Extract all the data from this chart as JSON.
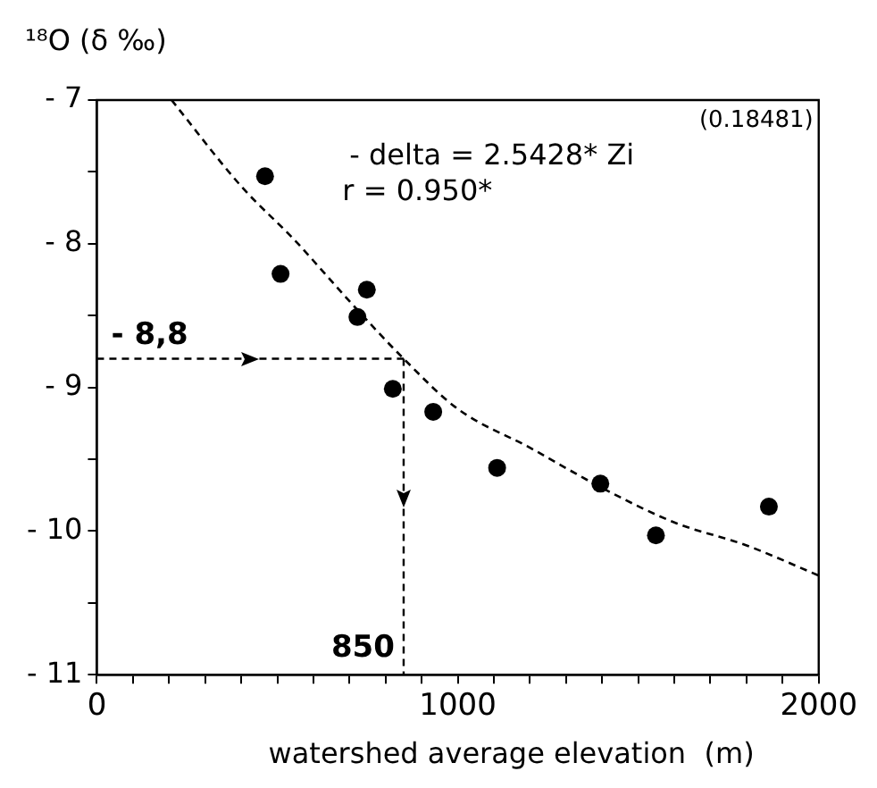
{
  "chart_data": {
    "type": "scatter",
    "ylabel": "¹⁸O (δ ‰)",
    "xlabel": "watershed average elevation  (m)",
    "annotations": [
      "- delta = 2.5428* Zi",
      "r = 0.950*",
      "(0.18481)"
    ],
    "xlim": [
      0,
      2000
    ],
    "ylim": [
      -11,
      -7
    ],
    "xticks": [
      0,
      {
        "value": 100,
        "label": null
      },
      {
        "value": 200,
        "label": null
      },
      {
        "value": 300,
        "label": null
      },
      {
        "value": 400,
        "label": null
      },
      {
        "value": 500,
        "label": null
      },
      {
        "value": 600,
        "label": null
      },
      {
        "value": 700,
        "label": null
      },
      {
        "value": 800,
        "label": null
      },
      {
        "value": 900,
        "label": null
      },
      1000,
      {
        "value": 1100,
        "label": null
      },
      {
        "value": 1200,
        "label": null
      },
      {
        "value": 1300,
        "label": null
      },
      {
        "value": 1400,
        "label": null
      },
      {
        "value": 1500,
        "label": null
      },
      {
        "value": 1600,
        "label": null
      },
      {
        "value": 1700,
        "label": null
      },
      {
        "value": 1800,
        "label": null
      },
      {
        "value": 1900,
        "label": null
      },
      2000
    ],
    "yticks": [
      {
        "value": -7,
        "label": "- 7"
      },
      {
        "value": -7.5,
        "label": null
      },
      {
        "value": -8,
        "label": "- 8"
      },
      {
        "value": -8.5,
        "label": null
      },
      {
        "value": -9,
        "label": "- 9"
      },
      {
        "value": -9.5,
        "label": null
      },
      {
        "value": -10,
        "label": "- 10"
      },
      {
        "value": -10.5,
        "label": null
      },
      {
        "value": -11,
        "label": "- 11"
      }
    ],
    "grid": false,
    "legend": false,
    "marker": "circle",
    "ref_lines": [
      {
        "axis": "y",
        "value": -8.8,
        "label": "- 8,8",
        "color": "#000000",
        "line_style": "dashed"
      },
      {
        "axis": "x",
        "value": 850,
        "label": "850",
        "color": "#000000",
        "line_style": "dashed"
      }
    ],
    "series": [
      {
        "color": "#000000",
        "x": [
          466,
          509,
          748,
          722,
          820,
          932,
          1109,
          1395,
          1549,
          1862
        ],
        "values": [
          -7.53,
          -8.21,
          -8.32,
          -8.51,
          -9.01,
          -9.17,
          -9.56,
          -9.67,
          -10.03,
          -9.83
        ]
      },
      {
        "type": "line",
        "color": "#000000",
        "line_style": "dashed",
        "marker": "none",
        "x": [
          207,
          400,
          550,
          700,
          850,
          1000,
          1200,
          1400,
          1600,
          1800,
          2000
        ],
        "values": [
          -7,
          -7.6,
          -7.98,
          -8.4,
          -8.8,
          -9.15,
          -9.42,
          -9.7,
          -9.94,
          -10.1,
          -10.31
        ]
      }
    ]
  }
}
